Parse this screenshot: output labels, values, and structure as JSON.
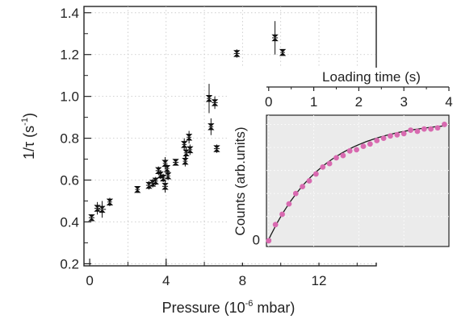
{
  "chart_data": [
    {
      "type": "scatter",
      "xlabel": "Pressure (10",
      "xlabel_sup": "-6",
      "xlabel_end": " mbar)",
      "ylabel": "1/τ (s",
      "ylabel_sup": "-1",
      "ylabel_end": ")",
      "xlim": [
        -0.3,
        15
      ],
      "ylim": [
        0.19,
        1.43
      ],
      "xticks": [
        0,
        4,
        8,
        12
      ],
      "yticks": [
        0.2,
        0.4,
        0.6,
        0.8,
        1.0,
        1.2,
        1.4
      ],
      "xtick_labels": [
        "0",
        "4",
        "8",
        "12"
      ],
      "ytick_labels": [
        "0.2",
        "0.4",
        "0.6",
        "0.8",
        "1.0",
        "1.2",
        "1.4"
      ],
      "grid": true,
      "marker": "bowtie",
      "marker_color": "#111111",
      "points": [
        {
          "x": 0.1,
          "y": 0.42,
          "xerr": 0.15,
          "yerr": 0.015
        },
        {
          "x": 0.4,
          "y": 0.465,
          "xerr": 0.15,
          "yerr": 0.03
        },
        {
          "x": 0.65,
          "y": 0.46,
          "xerr": 0.2,
          "yerr": 0.04
        },
        {
          "x": 1.05,
          "y": 0.495,
          "xerr": 0.12,
          "yerr": 0.02
        },
        {
          "x": 2.5,
          "y": 0.555,
          "xerr": 0.12,
          "yerr": 0.015
        },
        {
          "x": 3.1,
          "y": 0.575,
          "xerr": 0.15,
          "yerr": 0.02
        },
        {
          "x": 3.3,
          "y": 0.585,
          "xerr": 0.15,
          "yerr": 0.02
        },
        {
          "x": 3.45,
          "y": 0.595,
          "xerr": 0.12,
          "yerr": 0.02
        },
        {
          "x": 3.6,
          "y": 0.645,
          "xerr": 0.15,
          "yerr": 0.02
        },
        {
          "x": 3.7,
          "y": 0.625,
          "xerr": 0.12,
          "yerr": 0.02
        },
        {
          "x": 3.85,
          "y": 0.61,
          "xerr": 0.12,
          "yerr": 0.02
        },
        {
          "x": 3.95,
          "y": 0.68,
          "xerr": 0.12,
          "yerr": 0.03
        },
        {
          "x": 3.95,
          "y": 0.57,
          "xerr": 0.15,
          "yerr": 0.03
        },
        {
          "x": 4.05,
          "y": 0.655,
          "xerr": 0.12,
          "yerr": 0.02
        },
        {
          "x": 4.1,
          "y": 0.62,
          "xerr": 0.12,
          "yerr": 0.02
        },
        {
          "x": 4.5,
          "y": 0.685,
          "xerr": 0.15,
          "yerr": 0.015
        },
        {
          "x": 4.95,
          "y": 0.77,
          "xerr": 0.12,
          "yerr": 0.03
        },
        {
          "x": 5.0,
          "y": 0.69,
          "xerr": 0.12,
          "yerr": 0.025
        },
        {
          "x": 5.05,
          "y": 0.73,
          "xerr": 0.12,
          "yerr": 0.025
        },
        {
          "x": 5.2,
          "y": 0.805,
          "xerr": 0.12,
          "yerr": 0.03
        },
        {
          "x": 5.25,
          "y": 0.745,
          "xerr": 0.12,
          "yerr": 0.025
        },
        {
          "x": 6.25,
          "y": 0.99,
          "xerr": 0.12,
          "yerr": 0.07
        },
        {
          "x": 6.35,
          "y": 0.855,
          "xerr": 0.12,
          "yerr": 0.04
        },
        {
          "x": 6.55,
          "y": 0.97,
          "xerr": 0.15,
          "yerr": 0.03
        },
        {
          "x": 6.65,
          "y": 0.75,
          "xerr": 0.15,
          "yerr": 0.02
        },
        {
          "x": 7.7,
          "y": 1.205,
          "xerr": 0.15,
          "yerr": 0.02
        },
        {
          "x": 9.7,
          "y": 1.28,
          "xerr": 0.15,
          "yerr": 0.08
        },
        {
          "x": 10.1,
          "y": 1.21,
          "xerr": 0.12,
          "yerr": 0.015
        }
      ]
    },
    {
      "type": "scatter",
      "inset": true,
      "xlabel": "Loading time (s)",
      "ylabel": "Counts (arb.units)",
      "xlim": [
        -0.05,
        4.0
      ],
      "ylim": [
        -0.06,
        1.08
      ],
      "xticks": [
        0,
        1,
        2,
        3,
        4
      ],
      "xtick_labels": [
        "0",
        "1",
        "2",
        "3",
        "4"
      ],
      "yticks": [
        0
      ],
      "ytick_labels": [
        "0"
      ],
      "background": "#ebebeb",
      "point_color": "#d86ab0",
      "fit_color": "#1a1a1a",
      "fit_model": "A(1-exp(-t/tau))",
      "fit_params": {
        "A": 1.033,
        "tau": 1.25
      },
      "points": [
        {
          "x": 0.0,
          "y": -0.01
        },
        {
          "x": 0.15,
          "y": 0.13
        },
        {
          "x": 0.3,
          "y": 0.22
        },
        {
          "x": 0.45,
          "y": 0.31
        },
        {
          "x": 0.6,
          "y": 0.4
        },
        {
          "x": 0.75,
          "y": 0.46
        },
        {
          "x": 0.9,
          "y": 0.51
        },
        {
          "x": 1.05,
          "y": 0.57
        },
        {
          "x": 1.2,
          "y": 0.63
        },
        {
          "x": 1.35,
          "y": 0.66
        },
        {
          "x": 1.5,
          "y": 0.71
        },
        {
          "x": 1.65,
          "y": 0.73
        },
        {
          "x": 1.8,
          "y": 0.77
        },
        {
          "x": 1.95,
          "y": 0.78
        },
        {
          "x": 2.1,
          "y": 0.81
        },
        {
          "x": 2.25,
          "y": 0.83
        },
        {
          "x": 2.4,
          "y": 0.86
        },
        {
          "x": 2.55,
          "y": 0.88
        },
        {
          "x": 2.7,
          "y": 0.9
        },
        {
          "x": 2.85,
          "y": 0.91
        },
        {
          "x": 3.0,
          "y": 0.92
        },
        {
          "x": 3.15,
          "y": 0.95
        },
        {
          "x": 3.3,
          "y": 0.94
        },
        {
          "x": 3.45,
          "y": 0.96
        },
        {
          "x": 3.6,
          "y": 0.96
        },
        {
          "x": 3.75,
          "y": 0.97
        },
        {
          "x": 3.9,
          "y": 1.0
        }
      ]
    }
  ]
}
